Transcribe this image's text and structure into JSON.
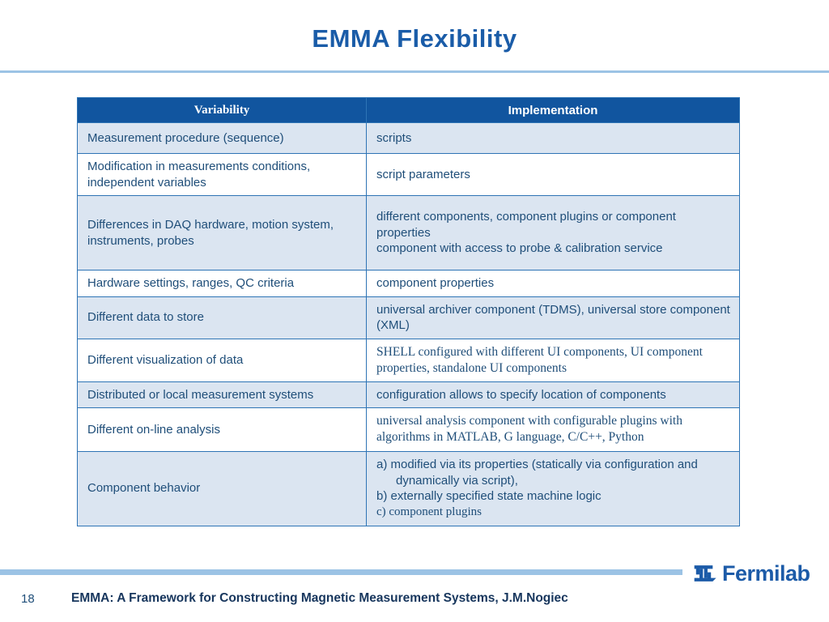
{
  "slide": {
    "title": "EMMA Flexibility",
    "page_number": "18",
    "footer": "EMMA: A Framework for Constructing Magnetic Measurement Systems, J.M.Nogiec",
    "logo_text": "Fermilab"
  },
  "table": {
    "headers": [
      "Variability",
      "Implementation"
    ],
    "rows": [
      {
        "variability": "Measurement procedure (sequence)",
        "implementation": [
          "scripts"
        ]
      },
      {
        "variability": "Modification in measurements conditions, independent variables",
        "implementation": [
          "script parameters"
        ]
      },
      {
        "variability": "Differences in DAQ hardware, motion system, instruments, probes",
        "implementation": [
          "different components, component plugins or component properties",
          "component with access to probe & calibration service"
        ]
      },
      {
        "variability": "Hardware settings, ranges, QC criteria",
        "implementation": [
          "component properties"
        ]
      },
      {
        "variability": "Different data to store",
        "implementation": [
          "universal archiver component (TDMS), universal store component (XML)"
        ]
      },
      {
        "variability": "Different visualization of data",
        "serif": true,
        "implementation": [
          "SHELL configured with different UI components, UI component properties, standalone UI components"
        ]
      },
      {
        "variability": "Distributed or local measurement systems",
        "implementation": [
          "configuration allows to specify location of components"
        ]
      },
      {
        "variability": "Different on-line analysis",
        "serif": true,
        "implementation": [
          "universal analysis component with configurable plugins with algorithms in MATLAB, G language, C/C++, Python"
        ]
      },
      {
        "variability": "Component behavior",
        "implementation": [
          {
            "text": "a)  modified via its properties (statically via configuration and dynamically via script),",
            "hang": true
          },
          {
            "text": "b)  externally specified state machine logic",
            "hang": true
          },
          {
            "text": "c)  component plugins",
            "hang": true,
            "serif": true
          }
        ]
      }
    ]
  },
  "colors": {
    "title": "#1a5ca8",
    "header_bg": "#11559f",
    "border": "#2e74b5",
    "text": "#1f4e79",
    "band": "#dbe5f1",
    "accent": "#9cc3e5",
    "logo": "#1c5ba8",
    "footer": "#17365d"
  }
}
